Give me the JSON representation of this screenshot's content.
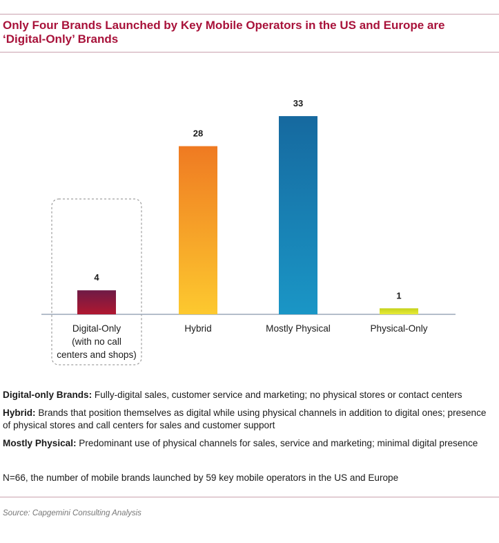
{
  "title_line1": "Only Four Brands Launched by Key Mobile Operators in the US and Europe are",
  "title_line2": "‘Digital-Only’ Brands",
  "chart_data": {
    "type": "bar",
    "categories": [
      "Digital-Only",
      "Hybrid",
      "Mostly Physical",
      "Physical-Only"
    ],
    "category_sublabels": [
      [
        "(with no call",
        "centers and shops)"
      ],
      [],
      [],
      []
    ],
    "values": [
      4,
      28,
      33,
      1
    ],
    "value_labels": [
      "4",
      "28",
      "33",
      "1"
    ],
    "ylim": [
      0,
      36
    ],
    "grid": false,
    "highlighted_category": "Digital-Only",
    "colors": {
      "digital_only": [
        "#6e1a46",
        "#b01830"
      ],
      "hybrid": [
        "#ef7a22",
        "#fdc92f"
      ],
      "mostly_physical": [
        "#16699f",
        "#1a96c6"
      ],
      "physical_only": [
        "#c4d21a",
        "#e9ec3a"
      ]
    }
  },
  "definitions": [
    {
      "term": "Digital-only Brands:",
      "text": " Fully-digital sales, customer service and marketing; no physical stores or contact centers"
    },
    {
      "term": "Hybrid:",
      "text": " Brands that position themselves as digital while using physical channels in addition to digital ones; presence of physical stores and call centers for sales and customer support"
    },
    {
      "term": "Mostly Physical:",
      "text": " Predominant use of physical channels for sales, service and marketing; minimal digital presence"
    }
  ],
  "note": "N=66, the number of mobile brands launched by 59 key mobile operators in the US and Europe",
  "source": "Source: Capgemini Consulting Analysis",
  "colors": {
    "title": "#a8123a",
    "rule": "#c9a0ad",
    "axis": "#9aa7b8"
  }
}
